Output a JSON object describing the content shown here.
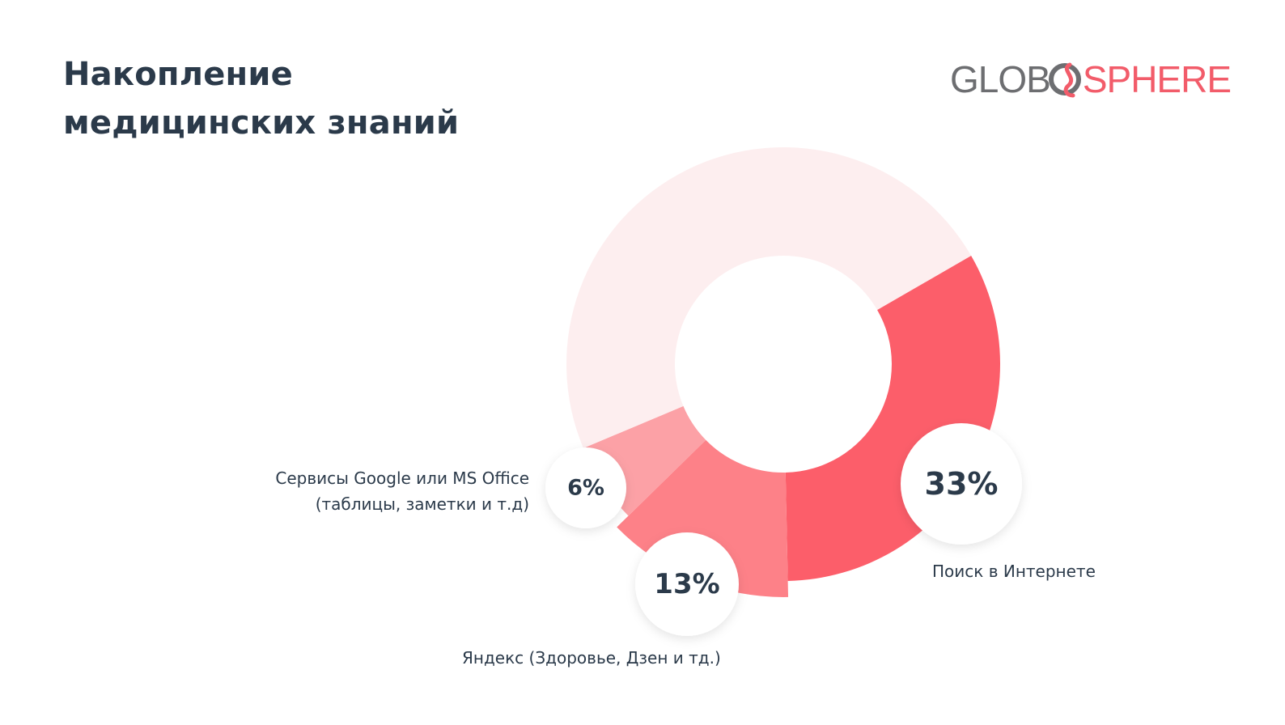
{
  "title_lines": [
    "Накопление",
    "медицинских знаний"
  ],
  "logo": {
    "part1": "GLOB",
    "part2": "SPHERE",
    "icon": "globe-swirl-icon"
  },
  "colors": {
    "rest": "#fdeeef",
    "search": "#fc5e6a",
    "yandex": "#fd8188",
    "google": "#fca1a6",
    "text": "#2b3a4a"
  },
  "chart_data": {
    "type": "pie",
    "donut": true,
    "series": [
      {
        "name": "Поиск в Интернете",
        "value": 33,
        "value_label": "33%"
      },
      {
        "name": "Яндекс (Здоровье, Дзен и тд.)",
        "value": 13,
        "value_label": "13%"
      },
      {
        "name": "Сервисы Google или MS Office (таблицы, заметки и т.д)",
        "value": 6,
        "value_label": "6%"
      },
      {
        "name": "",
        "value": 48,
        "value_label": ""
      }
    ]
  },
  "labels": {
    "search": [
      "Поиск в Интернете"
    ],
    "yandex": [
      "Яндекс (Здоровье, Дзен и тд.)"
    ],
    "google": [
      "Сервисы Google или MS Office",
      "(таблицы, заметки и т.д)"
    ]
  }
}
